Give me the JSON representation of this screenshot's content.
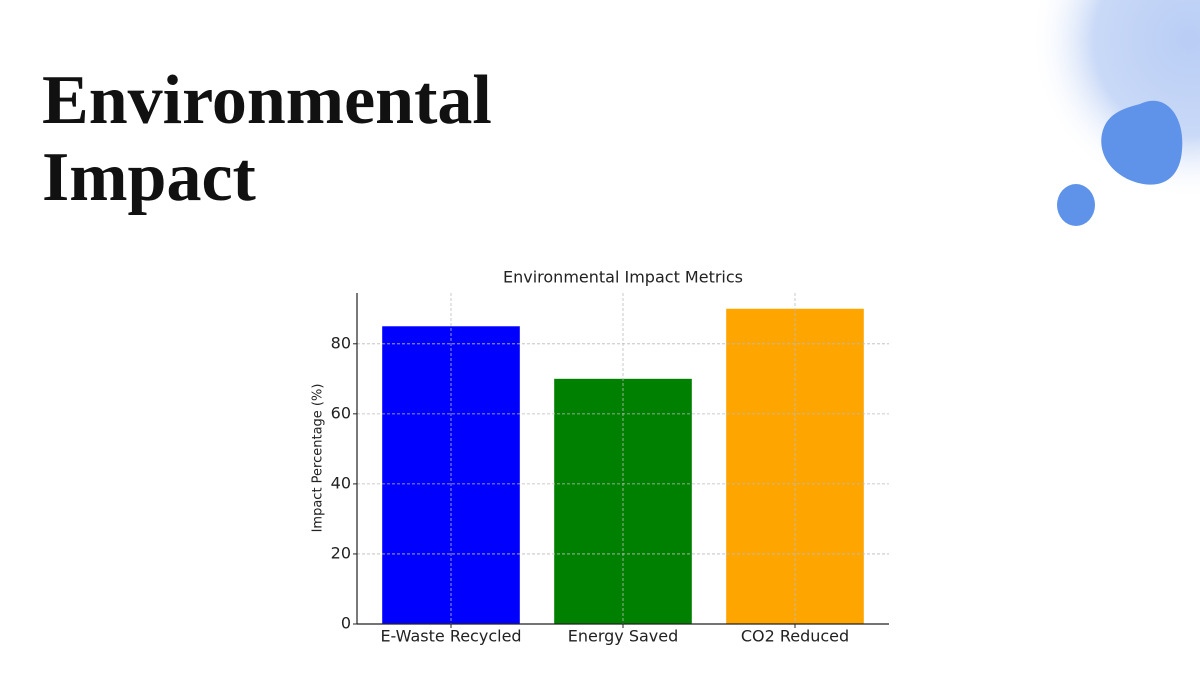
{
  "slide_title": "Environmental Impact",
  "chart_data": {
    "type": "bar",
    "title": "Environmental Impact Metrics",
    "ylabel": "Impact Percentage (%)",
    "categories": [
      "E-Waste Recycled",
      "Energy Saved",
      "CO2 Reduced"
    ],
    "values": [
      85,
      70,
      90
    ],
    "colors": [
      "#0000ff",
      "#008000",
      "#ffa500"
    ],
    "ylim": [
      0,
      94.5
    ],
    "yticks": [
      0,
      20,
      40,
      60,
      80
    ],
    "grid": true
  }
}
